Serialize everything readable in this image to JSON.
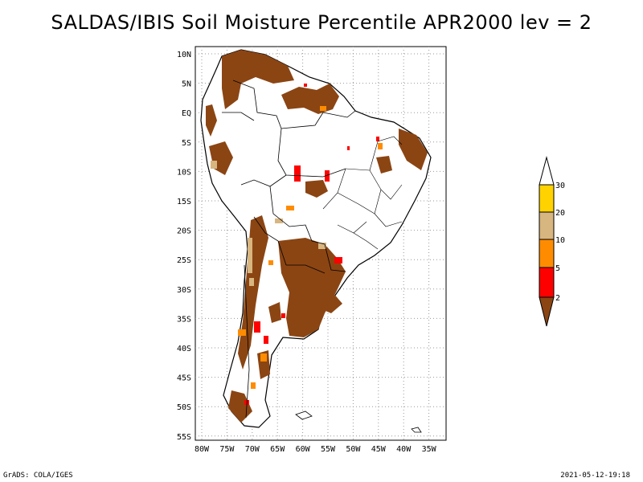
{
  "title": "SALDAS/IBIS Soil Moisture Percentile APR2000 lev = 2",
  "footer": {
    "left": "GrADS: COLA/IGES",
    "right": "2021-05-12-19:18"
  },
  "map": {
    "lat_labels": [
      "10N",
      "5N",
      "EQ",
      "5S",
      "10S",
      "15S",
      "20S",
      "25S",
      "30S",
      "35S",
      "40S",
      "45S",
      "50S",
      "55S"
    ],
    "lon_labels": [
      "80W",
      "75W",
      "70W",
      "65W",
      "60W",
      "55W",
      "50W",
      "45W",
      "40W",
      "35W"
    ]
  },
  "legend": {
    "labels": [
      "30",
      "20",
      "10",
      "5",
      "2"
    ],
    "colors": {
      "above_30": "#ffffff",
      "20_30": "#ffd200",
      "10_20": "#d8b680",
      "5_10": "#ff8c00",
      "2_5": "#ff0000",
      "below_2": "#8b4513"
    }
  }
}
